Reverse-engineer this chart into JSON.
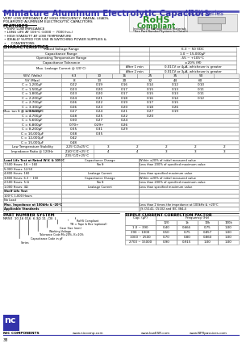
{
  "title": "Miniature Aluminum Electrolytic Capacitors",
  "series": "NRSX Series",
  "bg_color": "#ffffff",
  "header_color": "#3333AA",
  "description1": "VERY LOW IMPEDANCE AT HIGH FREQUENCY, RADIAL LEADS,",
  "description2": "POLARIZED ALUMINUM ELECTROLYTIC CAPACITORS",
  "features_title": "FEATURES",
  "features": [
    "VERY LOW IMPEDANCE",
    "LONG LIFE AT 105°C (1000 ~ 7000 hrs.)",
    "HIGH STABILITY AT LOW TEMPERATURE",
    "IDEALLY SUITED FOR USE IN SWITCHING POWER SUPPLIES &",
    "    CONVENTONS"
  ],
  "rohs_sub": "Includes all homogeneous materials",
  "rohs_sub2": "*See Part Number System for Details",
  "char_title": "CHARACTERISTICS",
  "char_rows": [
    [
      "Rated Voltage Range",
      "6.3 ~ 50 VDC"
    ],
    [
      "Capacitance Range",
      "1.0 ~ 15,000μF"
    ],
    [
      "Operating Temperature Range",
      "-55 ~ +105°C"
    ],
    [
      "Capacitance Tolerance",
      "±20% (M)"
    ]
  ],
  "leakage_label": "Max. Leakage Current @ (20°C)",
  "leakage_after1": "After 1 min",
  "leakage_after2": "After 2 min",
  "leakage_val1": "0.01CV or 4μA, whichever is greater",
  "leakage_val2": "0.01CV or 3μA, whichever is greater",
  "tan_label": "Max. tan δ @ 120Hz/20°C",
  "wv_header": [
    "W.V. (Volts)",
    "6.3",
    "10",
    "16",
    "25",
    "35",
    "50"
  ],
  "tan_rows": [
    [
      "5V (Max)",
      "8",
      "13",
      "20",
      "32",
      "44",
      "60"
    ],
    [
      "C = 1,200μF",
      "0.22",
      "0.19",
      "0.16",
      "0.14",
      "0.12",
      "0.10"
    ],
    [
      "C = 1,500μF",
      "0.23",
      "0.20",
      "0.17",
      "0.15",
      "0.13",
      "0.11"
    ],
    [
      "C = 1,800μF",
      "0.23",
      "0.20",
      "0.17",
      "0.15",
      "0.13",
      "0.11"
    ],
    [
      "C = 2,200μF",
      "0.24",
      "0.21",
      "0.18",
      "0.16",
      "0.14",
      "0.12"
    ],
    [
      "C = 2,700μF",
      "0.26",
      "0.22",
      "0.19",
      "0.17",
      "0.15",
      ""
    ],
    [
      "C = 3,300μF",
      "0.26",
      "0.23",
      "0.20",
      "0.18",
      "0.26",
      ""
    ],
    [
      "C = 3,900μF",
      "0.27",
      "0.24",
      "0.21",
      "0.27",
      "0.19",
      ""
    ],
    [
      "C = 4,700μF",
      "0.28",
      "0.25",
      "0.22",
      "0.20",
      "",
      ""
    ],
    [
      "C = 5,600μF",
      "0.30",
      "0.27",
      "0.24",
      "",
      "",
      ""
    ],
    [
      "C = 6,800μF",
      "0.70+",
      "0.29+",
      "0.26",
      "",
      "",
      ""
    ],
    [
      "C = 8,200μF",
      "0.35",
      "0.31",
      "0.29",
      "",
      "",
      ""
    ],
    [
      "C = 10,000μF",
      "0.38",
      "0.35",
      "",
      "",
      "",
      ""
    ],
    [
      "C = 12,000μF",
      "0.42",
      "",
      "",
      "",
      "",
      ""
    ],
    [
      "C = 15,000μF",
      "0.48",
      "",
      "",
      "",
      "",
      ""
    ]
  ],
  "low_temp_rows": [
    [
      "Low Temperature Stability",
      "2.25°C/2x25°C",
      "3",
      "2",
      "2",
      "2",
      "2"
    ],
    [
      "Impedance Ratio @ 120Hz",
      "Z-40°C/Z+25°C",
      "4",
      "4",
      "3",
      "3",
      "3"
    ],
    [
      "",
      "Z-55°C/Z+25°C",
      "",
      "",
      "",
      "",
      ""
    ]
  ],
  "bottom_left_sections": [
    {
      "header": "Load Life Test at Rated W.V. & 105°C",
      "lines": [
        "7,500 Hours: 16 ~ 160",
        "5,000 Hours: 12,50",
        "4,800 Hours: 160",
        "3,800 Hours: 6.3 ~ 160",
        "2,500 Hours: 5 Ω",
        "1,000 Hours: 4Ω"
      ]
    },
    {
      "header": "Shelf Life Test",
      "lines": [
        "100°C 1,000 Hours",
        "No Load"
      ]
    },
    {
      "header": "Max. Impedance at 100kHz & -20°C",
      "lines": []
    },
    {
      "header": "Applicable Standards",
      "lines": []
    }
  ],
  "bottom_right_sections": [
    [
      "Capacitance Change",
      "Within ±20% of initial measured value"
    ],
    [
      "Tan δ",
      "Less than 200% of specified maximum value"
    ],
    [
      "",
      ""
    ],
    [
      "Leakage Current",
      "Less than specified maximum value"
    ],
    [
      "Capacitance Change",
      "Within ±20% of initial measured value"
    ],
    [
      "Tan δ",
      "Less than 200% of specified maximum value"
    ],
    [
      "Leakage Current",
      "Less than specified maximum value"
    ],
    [
      "",
      "Less than 2 times the impedance at 100kHz & +20°C"
    ],
    [
      "",
      "JIS C5141, C5102 and IEC 384-4"
    ]
  ],
  "part_number_title": "PART NUMBER SYSTEM",
  "part_number_line": "NRSX  10 16 016  6.3Ω 11  CB  L",
  "pn_labels": [
    [
      "RoHS Compliant",
      0.62
    ],
    [
      "TB = Tape & Box (optional)",
      0.56
    ],
    [
      "Case Size (mm)",
      0.47
    ],
    [
      "Working Voltage",
      0.38
    ],
    [
      "Tolerance Code:M=20%, K=10%",
      0.3
    ],
    [
      "Capacitance Code in pF",
      0.22
    ],
    [
      "Series",
      0.14
    ]
  ],
  "correction_title": "RIPPLE CURRENT CORRECTION FACTOR",
  "correction_freq_header": "Frequency (Hz)",
  "correction_cap_header": "Cap. (μF)",
  "correction_col_headers": [
    "120",
    "1k",
    "10k",
    "100k"
  ],
  "correction_rows": [
    [
      "1.0 ~ 390",
      "0.40",
      "0.666",
      "0.75",
      "1.00"
    ],
    [
      "390 ~ 1000",
      "0.50",
      "0.75",
      "0.857",
      "1.00"
    ],
    [
      "1000 ~ 2500",
      "0.70",
      "0.80",
      "0.860",
      "1.00"
    ],
    [
      "2700 ~ 15000",
      "0.90",
      "0.915",
      "1.00",
      "1.00"
    ]
  ],
  "bottom_labels": [
    "NIC COMPONENTS",
    "www.niccomp.com",
    "www.lowESR.com",
    "www.NFRpassives.com"
  ],
  "page_number": "38"
}
